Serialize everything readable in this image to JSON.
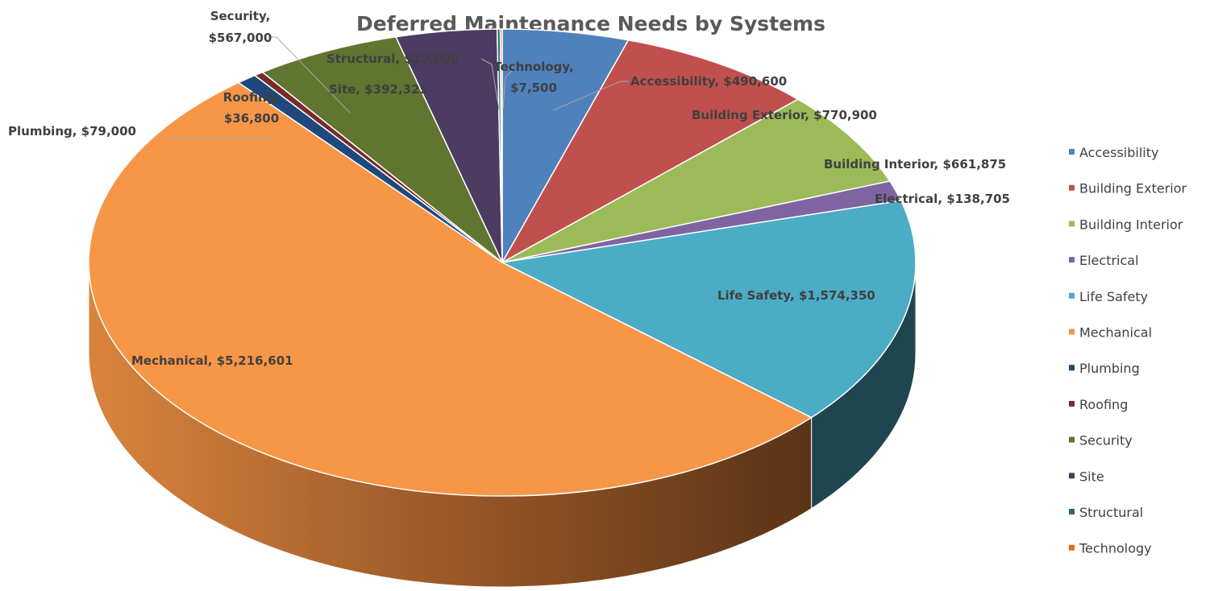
{
  "chart_data": {
    "type": "pie",
    "title": "Deferred Maintenance Needs by Systems",
    "legend_position": "right",
    "slices": [
      {
        "category": "Accessibility",
        "value": 490600,
        "label": "Accessibility, $490,600",
        "color": "#4F81BD",
        "side": "#2F4D71"
      },
      {
        "category": "Building Exterior",
        "value": 770900,
        "label": "Building Exterior, $770,900",
        "color": "#C0504D",
        "side": "#73302E"
      },
      {
        "category": "Building Interior",
        "value": 661875,
        "label": "Building Interior, $661,875",
        "color": "#9BBB59",
        "side": "#5D7035"
      },
      {
        "category": "Electrical",
        "value": 138705,
        "label": "Electrical, $138,705",
        "color": "#8064A2",
        "side": "#4D3C61"
      },
      {
        "category": "Life Safety",
        "value": 1574350,
        "label": "Life Safety, $1,574,350",
        "color": "#4BACC6",
        "side": "#1F4650"
      },
      {
        "category": "Mechanical",
        "value": 5216601,
        "label": "Mechanical, $5,216,601",
        "color": "#F79646",
        "side": "#94592A"
      },
      {
        "category": "Plumbing",
        "value": 79000,
        "label": "Plumbing, $79,000",
        "color": "#1F497D",
        "side": "#132C4B"
      },
      {
        "category": "Roofing",
        "value": 36800,
        "label": "Roofing, $36,800",
        "color": "#772C2A",
        "side": "#471A19"
      },
      {
        "category": "Security",
        "value": 567000,
        "label": "Security, $567,000",
        "color": "#5F7530",
        "side": "#39461D"
      },
      {
        "category": "Site",
        "value": 392325,
        "label": "Site, $392,325",
        "color": "#4D3B62",
        "side": "#2E233B"
      },
      {
        "category": "Structural",
        "value": 12000,
        "label": "Structural, $12,000",
        "color": "#276A7C",
        "side": "#17404A"
      },
      {
        "category": "Technology",
        "value": 7500,
        "label": "Technology, $7,500",
        "color": "#E46C0A",
        "side": "#884106"
      }
    ]
  }
}
